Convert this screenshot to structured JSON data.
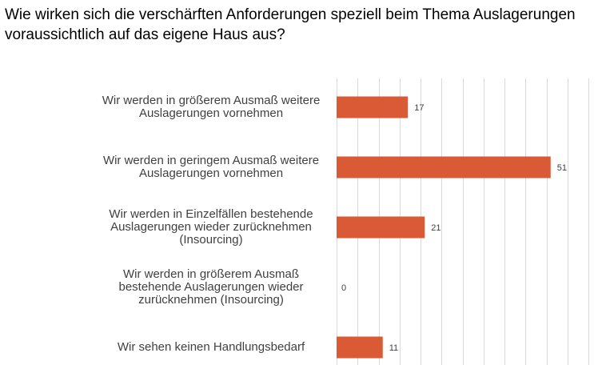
{
  "title": "Wie wirken sich die verschärften Anforderungen speziell beim Thema Auslagerungen voraussichtlich auf das eigene Haus aus?",
  "chart_data": {
    "type": "bar",
    "orientation": "horizontal",
    "categories": [
      "Wir werden in größerem Ausmaß weitere Auslagerungen vornehmen",
      "Wir werden in geringem Ausmaß weitere Auslagerungen vornehmen",
      "Wir werden in Einzelfällen bestehende Auslagerungen wieder zurücknehmen (Insourcing)",
      "Wir werden in größerem Ausmaß bestehende Auslagerungen wieder zurücknehmen (Insourcing)",
      "Wir sehen keinen Handlungsbedarf"
    ],
    "values": [
      17,
      51,
      21,
      0,
      11
    ],
    "value_labels": [
      "17",
      "51",
      "21",
      "0",
      "11"
    ],
    "xlim": [
      0,
      60
    ],
    "grid": true,
    "bar_color": "#d95a35",
    "grid_color": "#d9d9d9"
  }
}
